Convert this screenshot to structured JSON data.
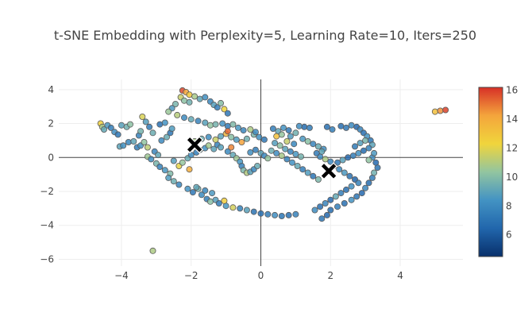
{
  "chart_data": {
    "type": "scatter",
    "title": "t-SNE Embedding  with Perplexity=5, Learning Rate=10, Iters=250",
    "xlim": [
      -5.8,
      5.8
    ],
    "ylim": [
      -6.4,
      4.6
    ],
    "x_ticks": [
      -4,
      -2,
      0,
      2,
      4
    ],
    "x_tick_labels": [
      "−4",
      "−2",
      "0",
      "2",
      "4"
    ],
    "y_ticks": [
      -6,
      -4,
      -2,
      0,
      2,
      4
    ],
    "y_tick_labels": [
      "−6",
      "−4",
      "−2",
      "0",
      "2",
      "4"
    ],
    "colorbar": {
      "min": 4.5,
      "max": 16.2,
      "ticks": [
        6,
        8,
        10,
        12,
        14,
        16
      ],
      "tick_labels": [
        "6",
        "8",
        "10",
        "12",
        "14",
        "16"
      ],
      "colors": [
        "#08306b",
        "#2166ac",
        "#4393c3",
        "#92c5a0",
        "#f0d53c",
        "#f4a53c",
        "#d73027"
      ]
    },
    "marker_colors": {
      "outline": "#5a5a5a",
      "centroid": "#000000"
    },
    "points": [
      [
        -4.6,
        2.0,
        12.5
      ],
      [
        -4.55,
        1.8,
        10.8
      ],
      [
        -4.5,
        1.65,
        9.2
      ],
      [
        -4.4,
        1.9,
        8.6
      ],
      [
        -4.3,
        1.75,
        7.5
      ],
      [
        -4.2,
        1.5,
        8.1
      ],
      [
        -4.1,
        1.35,
        7.2
      ],
      [
        -4.0,
        1.9,
        8.9
      ],
      [
        -3.85,
        1.8,
        9.5
      ],
      [
        -3.75,
        1.95,
        10.2
      ],
      [
        -4.05,
        0.65,
        9.0
      ],
      [
        -3.95,
        0.7,
        8.3
      ],
      [
        -3.8,
        0.9,
        7.9
      ],
      [
        -3.65,
        0.95,
        9.1
      ],
      [
        -3.55,
        0.6,
        7.4
      ],
      [
        -3.45,
        0.7,
        8.4
      ],
      [
        -3.35,
        0.9,
        10.3
      ],
      [
        -3.25,
        0.6,
        11.2
      ],
      [
        -3.5,
        1.3,
        7.7
      ],
      [
        -3.45,
        1.55,
        9.6
      ],
      [
        -3.4,
        2.4,
        11.8
      ],
      [
        -3.3,
        2.1,
        8.8
      ],
      [
        -3.2,
        1.8,
        7.3
      ],
      [
        -3.1,
        1.45,
        9.4
      ],
      [
        -3.25,
        0.05,
        10.6
      ],
      [
        -3.15,
        -0.1,
        8.2
      ],
      [
        -3.0,
        -0.35,
        9.7
      ],
      [
        -2.9,
        -0.55,
        7.6
      ],
      [
        -2.75,
        -0.75,
        8.5
      ],
      [
        -2.6,
        -0.95,
        9.9
      ],
      [
        -2.85,
        1.0,
        8.0
      ],
      [
        -2.7,
        1.2,
        9.3
      ],
      [
        -2.6,
        1.45,
        7.1
      ],
      [
        -2.55,
        1.7,
        8.7
      ],
      [
        -2.9,
        1.95,
        6.9
      ],
      [
        -2.75,
        2.05,
        8.4
      ],
      [
        -3.05,
        0.35,
        7.8
      ],
      [
        -2.95,
        0.15,
        9.1
      ],
      [
        -2.5,
        -0.2,
        8.8
      ],
      [
        -2.35,
        -0.5,
        12.1
      ],
      [
        -2.25,
        -0.3,
        10.4
      ],
      [
        -2.1,
        -0.05,
        9.3
      ],
      [
        -2.0,
        0.15,
        8.1
      ],
      [
        -1.85,
        0.3,
        7.5
      ],
      [
        -1.75,
        0.45,
        9.6
      ],
      [
        -1.6,
        0.55,
        8.3
      ],
      [
        -1.5,
        0.7,
        10.7
      ],
      [
        -1.35,
        0.5,
        9.0
      ],
      [
        -1.25,
        0.75,
        7.6
      ],
      [
        -1.15,
        0.6,
        8.9
      ],
      [
        -2.25,
        3.95,
        15.8
      ],
      [
        -2.15,
        3.85,
        14.2
      ],
      [
        -2.05,
        3.7,
        12.9
      ],
      [
        -2.3,
        3.55,
        11.4
      ],
      [
        -2.2,
        3.35,
        10.2
      ],
      [
        -2.05,
        3.25,
        9.5
      ],
      [
        -1.9,
        3.6,
        10.8
      ],
      [
        -1.75,
        3.45,
        9.1
      ],
      [
        -1.6,
        3.55,
        8.2
      ],
      [
        -1.45,
        3.3,
        7.9
      ],
      [
        -1.35,
        3.1,
        8.8
      ],
      [
        -1.25,
        2.95,
        7.4
      ],
      [
        -1.15,
        3.2,
        10.0
      ],
      [
        -1.05,
        2.85,
        12.4
      ],
      [
        -0.95,
        2.6,
        7.2
      ],
      [
        -2.45,
        3.15,
        9.7
      ],
      [
        -2.55,
        2.9,
        8.6
      ],
      [
        -2.65,
        2.7,
        10.5
      ],
      [
        -2.4,
        2.5,
        11.1
      ],
      [
        -2.2,
        2.35,
        8.0
      ],
      [
        -2.0,
        2.25,
        9.2
      ],
      [
        -1.8,
        2.15,
        7.7
      ],
      [
        -1.6,
        2.05,
        8.9
      ],
      [
        -1.45,
        1.9,
        10.3
      ],
      [
        -1.3,
        1.95,
        9.6
      ],
      [
        -1.1,
        2.0,
        8.4
      ],
      [
        -0.95,
        1.85,
        7.3
      ],
      [
        -0.8,
        1.95,
        9.9
      ],
      [
        -0.65,
        1.75,
        8.6
      ],
      [
        -0.5,
        1.6,
        7.8
      ],
      [
        -1.9,
        0.95,
        10.8
      ],
      [
        -1.7,
        1.1,
        9.4
      ],
      [
        -1.5,
        1.2,
        8.2
      ],
      [
        -1.3,
        1.05,
        11.5
      ],
      [
        -1.15,
        1.25,
        9.0
      ],
      [
        -1.0,
        1.4,
        13.6
      ],
      [
        -0.85,
        1.2,
        10.1
      ],
      [
        -0.7,
        1.05,
        8.7
      ],
      [
        -0.55,
        0.9,
        14.3
      ],
      [
        -0.4,
        1.1,
        9.5
      ],
      [
        -0.95,
        0.35,
        8.0
      ],
      [
        -0.8,
        0.15,
        9.2
      ],
      [
        -0.7,
        -0.05,
        10.6
      ],
      [
        -0.6,
        -0.25,
        8.5
      ],
      [
        -0.55,
        -0.5,
        7.6
      ],
      [
        -0.5,
        -0.75,
        9.8
      ],
      [
        -0.4,
        -0.9,
        11.0
      ],
      [
        -0.3,
        -0.85,
        8.9
      ],
      [
        -0.2,
        -0.7,
        7.9
      ],
      [
        -0.1,
        -0.5,
        9.3
      ],
      [
        -0.3,
        0.3,
        8.2
      ],
      [
        -0.15,
        0.45,
        7.4
      ],
      [
        0.0,
        0.25,
        9.0
      ],
      [
        0.1,
        0.1,
        8.0
      ],
      [
        0.2,
        -0.05,
        10.4
      ],
      [
        -0.2,
        1.35,
        9.7
      ],
      [
        -0.05,
        1.2,
        8.3
      ],
      [
        0.1,
        1.05,
        7.2
      ],
      [
        -0.3,
        1.65,
        10.9
      ],
      [
        -0.15,
        1.5,
        8.1
      ],
      [
        -2.65,
        -1.2,
        8.7
      ],
      [
        -2.5,
        -1.4,
        9.4
      ],
      [
        -2.35,
        -1.6,
        7.8
      ],
      [
        -2.1,
        -1.85,
        8.4
      ],
      [
        -1.95,
        -2.05,
        7.2
      ],
      [
        -1.8,
        -1.85,
        9.6
      ],
      [
        -1.7,
        -2.2,
        8.0
      ],
      [
        -1.55,
        -2.45,
        7.5
      ],
      [
        -1.45,
        -2.6,
        10.1
      ],
      [
        -1.3,
        -2.5,
        8.8
      ],
      [
        -1.2,
        -2.7,
        7.3
      ],
      [
        -1.0,
        -2.85,
        8.5
      ],
      [
        -0.8,
        -2.95,
        11.7
      ],
      [
        -0.6,
        -3.0,
        7.6
      ],
      [
        -0.4,
        -3.1,
        8.9
      ],
      [
        -0.2,
        -3.2,
        7.0
      ],
      [
        0.0,
        -3.3,
        6.8
      ],
      [
        0.2,
        -3.35,
        7.4
      ],
      [
        0.4,
        -3.4,
        8.2
      ],
      [
        0.6,
        -3.45,
        7.1
      ],
      [
        0.8,
        -3.4,
        6.9
      ],
      [
        1.0,
        -3.35,
        7.7
      ],
      [
        -1.85,
        -1.75,
        9.1
      ],
      [
        -1.6,
        -1.95,
        7.9
      ],
      [
        -1.4,
        -2.1,
        8.6
      ],
      [
        0.35,
        1.7,
        7.5
      ],
      [
        0.5,
        1.55,
        9.1
      ],
      [
        0.65,
        1.75,
        8.4
      ],
      [
        0.8,
        1.6,
        7.2
      ],
      [
        0.4,
        0.85,
        8.8
      ],
      [
        0.55,
        0.7,
        10.2
      ],
      [
        0.7,
        0.5,
        9.0
      ],
      [
        0.85,
        0.35,
        7.7
      ],
      [
        1.0,
        0.2,
        8.5
      ],
      [
        1.15,
        0.05,
        9.6
      ],
      [
        0.3,
        0.4,
        9.4
      ],
      [
        0.45,
        0.25,
        8.1
      ],
      [
        0.6,
        0.1,
        10.8
      ],
      [
        0.75,
        -0.1,
        7.6
      ],
      [
        0.9,
        -0.3,
        8.3
      ],
      [
        1.05,
        -0.5,
        9.2
      ],
      [
        1.2,
        -0.7,
        7.4
      ],
      [
        1.35,
        -0.9,
        8.7
      ],
      [
        1.5,
        -1.1,
        7.1
      ],
      [
        1.65,
        -1.3,
        9.8
      ],
      [
        1.2,
        1.1,
        8.6
      ],
      [
        1.35,
        0.95,
        10.1
      ],
      [
        1.5,
        0.8,
        7.8
      ],
      [
        1.65,
        0.65,
        9.3
      ],
      [
        1.8,
        0.5,
        8.2
      ],
      [
        1.25,
        1.8,
        6.7
      ],
      [
        1.4,
        1.75,
        7.3
      ],
      [
        1.1,
        1.85,
        8.1
      ],
      [
        1.9,
        1.8,
        6.9
      ],
      [
        2.05,
        1.65,
        7.5
      ],
      [
        2.3,
        1.85,
        6.8
      ],
      [
        2.45,
        1.75,
        7.2
      ],
      [
        2.6,
        1.9,
        8.0
      ],
      [
        2.75,
        1.8,
        6.5
      ],
      [
        2.85,
        1.65,
        7.7
      ],
      [
        2.95,
        1.45,
        6.9
      ],
      [
        3.05,
        1.25,
        8.4
      ],
      [
        3.15,
        1.0,
        7.1
      ],
      [
        3.2,
        0.75,
        9.0
      ],
      [
        3.1,
        0.55,
        7.6
      ],
      [
        2.95,
        0.4,
        6.7
      ],
      [
        2.8,
        0.25,
        8.3
      ],
      [
        2.65,
        0.1,
        7.4
      ],
      [
        2.5,
        0.0,
        6.6
      ],
      [
        2.35,
        -0.15,
        8.9
      ],
      [
        2.2,
        -0.3,
        7.2
      ],
      [
        2.1,
        -0.5,
        6.5
      ],
      [
        2.25,
        -0.7,
        7.9
      ],
      [
        2.4,
        -0.9,
        8.6
      ],
      [
        2.55,
        -1.1,
        7.0
      ],
      [
        2.7,
        -1.3,
        6.4
      ],
      [
        2.8,
        -1.5,
        7.6
      ],
      [
        2.6,
        -1.7,
        8.3
      ],
      [
        2.45,
        -1.9,
        6.8
      ],
      [
        2.3,
        -2.1,
        7.4
      ],
      [
        2.15,
        -2.3,
        9.2
      ],
      [
        2.0,
        -2.5,
        6.6
      ],
      [
        1.85,
        -2.7,
        7.8
      ],
      [
        1.7,
        -2.9,
        6.9
      ],
      [
        1.55,
        -3.1,
        8.1
      ],
      [
        1.9,
        -3.4,
        6.5
      ],
      [
        1.75,
        -3.6,
        7.2
      ],
      [
        2.0,
        -3.1,
        6.7
      ],
      [
        2.2,
        -2.9,
        7.5
      ],
      [
        2.4,
        -2.7,
        6.9
      ],
      [
        2.6,
        -2.5,
        8.4
      ],
      [
        2.75,
        -2.3,
        7.1
      ],
      [
        2.9,
        -2.1,
        6.6
      ],
      [
        3.0,
        -1.8,
        7.8
      ],
      [
        3.1,
        -1.5,
        6.8
      ],
      [
        3.2,
        -1.2,
        7.4
      ],
      [
        3.25,
        -0.9,
        9.5
      ],
      [
        3.35,
        -0.6,
        7.0
      ],
      [
        3.3,
        -0.3,
        6.6
      ],
      [
        3.2,
        0.0,
        8.1
      ],
      [
        3.0,
        1.0,
        9.7
      ],
      [
        2.85,
        0.85,
        8.8
      ],
      [
        2.7,
        0.65,
        7.3
      ],
      [
        3.1,
        -0.15,
        10.3
      ],
      [
        3.25,
        0.25,
        8.6
      ],
      [
        1.7,
        0.05,
        8.0
      ],
      [
        1.85,
        -0.1,
        10.9
      ],
      [
        2.0,
        -0.25,
        7.7
      ],
      [
        1.75,
        0.35,
        9.1
      ],
      [
        1.6,
        0.25,
        7.3
      ],
      [
        0.6,
        1.35,
        10.4
      ],
      [
        0.85,
        1.25,
        8.7
      ],
      [
        1.0,
        1.45,
        9.5
      ],
      [
        0.75,
        0.95,
        11.4
      ],
      [
        0.95,
        0.8,
        7.9
      ],
      [
        -3.1,
        -5.5,
        10.9
      ],
      [
        5.0,
        2.7,
        13.2
      ],
      [
        5.15,
        2.75,
        14.6
      ],
      [
        5.3,
        2.8,
        15.9
      ],
      [
        -0.85,
        0.6,
        14.8
      ],
      [
        -0.95,
        1.55,
        15.3
      ],
      [
        -2.05,
        -0.7,
        13.9
      ],
      [
        -1.05,
        -2.55,
        12.6
      ],
      [
        0.45,
        1.25,
        13.1
      ]
    ],
    "centroids": [
      [
        -1.9,
        0.75
      ],
      [
        1.95,
        -0.8
      ]
    ]
  }
}
